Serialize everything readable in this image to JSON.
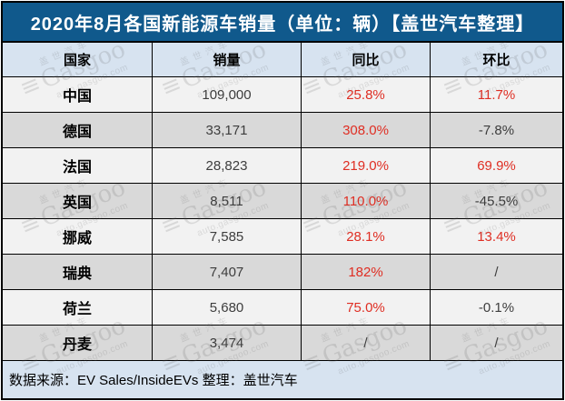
{
  "title": "2020年8月各国新能源车销量（单位：辆）【盖世汽车整理】",
  "header": {
    "country": "国家",
    "sales": "销量",
    "yoy": "同比",
    "mom": "环比"
  },
  "rows": [
    {
      "country": "中国",
      "sales": "109,000",
      "yoy": "25.8%",
      "mom": "11.7%"
    },
    {
      "country": "德国",
      "sales": "33,171",
      "yoy": "308.0%",
      "mom": "-7.8%"
    },
    {
      "country": "法国",
      "sales": "28,823",
      "yoy": "219.0%",
      "mom": "69.9%"
    },
    {
      "country": "英国",
      "sales": "8,511",
      "yoy": "110.0%",
      "mom": "-45.5%"
    },
    {
      "country": "挪威",
      "sales": "7,585",
      "yoy": "28.1%",
      "mom": "13.4%"
    },
    {
      "country": "瑞典",
      "sales": "7,407",
      "yoy": "182%",
      "mom": "/"
    },
    {
      "country": "荷兰",
      "sales": "5,680",
      "yoy": "75.0%",
      "mom": "-0.1%"
    },
    {
      "country": "丹麦",
      "sales": "3,474",
      "yoy": "/",
      "mom": "/"
    }
  ],
  "footer": "数据来源：EV Sales/InsideEVs 整理：盖世汽车",
  "watermark": {
    "cn": "盖世汽车",
    "logo": "≡",
    "brand": "Gasgoo",
    "url": "auto.gasgoo.com"
  },
  "colors": {
    "title_bg": "#10598C",
    "header_bg": "#D7E3F0",
    "footer_bg": "#D7E3F0",
    "row_light": "#F2F2F2",
    "row_dark": "#D9D9D9",
    "accent_red": "#DF2E23",
    "border": "#000000",
    "title_text": "#FFFFFF"
  },
  "chart_data": {
    "type": "table",
    "title": "2020年8月各国新能源车销量（单位：辆）【盖世汽车整理】",
    "columns": [
      "国家",
      "销量",
      "同比",
      "环比"
    ],
    "rows": [
      [
        "中国",
        "109,000",
        "25.8%",
        "11.7%"
      ],
      [
        "德国",
        "33,171",
        "308.0%",
        "-7.8%"
      ],
      [
        "法国",
        "28,823",
        "219.0%",
        "69.9%"
      ],
      [
        "英国",
        "8,511",
        "110.0%",
        "-45.5%"
      ],
      [
        "挪威",
        "7,585",
        "28.1%",
        "13.4%"
      ],
      [
        "瑞典",
        "7,407",
        "182%",
        "/"
      ],
      [
        "荷兰",
        "5,680",
        "75.0%",
        "-0.1%"
      ],
      [
        "丹麦",
        "3,474",
        "/",
        "/"
      ]
    ],
    "numeric": {
      "sales": [
        109000,
        33171,
        28823,
        8511,
        7585,
        7407,
        5680,
        3474
      ],
      "yoy_pct": [
        25.8,
        308.0,
        219.0,
        110.0,
        28.1,
        182,
        75.0,
        null
      ],
      "mom_pct": [
        11.7,
        -7.8,
        69.9,
        -45.5,
        13.4,
        null,
        -0.1,
        null
      ]
    },
    "units": "辆",
    "source": "数据来源：EV Sales/InsideEVs 整理：盖世汽车"
  }
}
